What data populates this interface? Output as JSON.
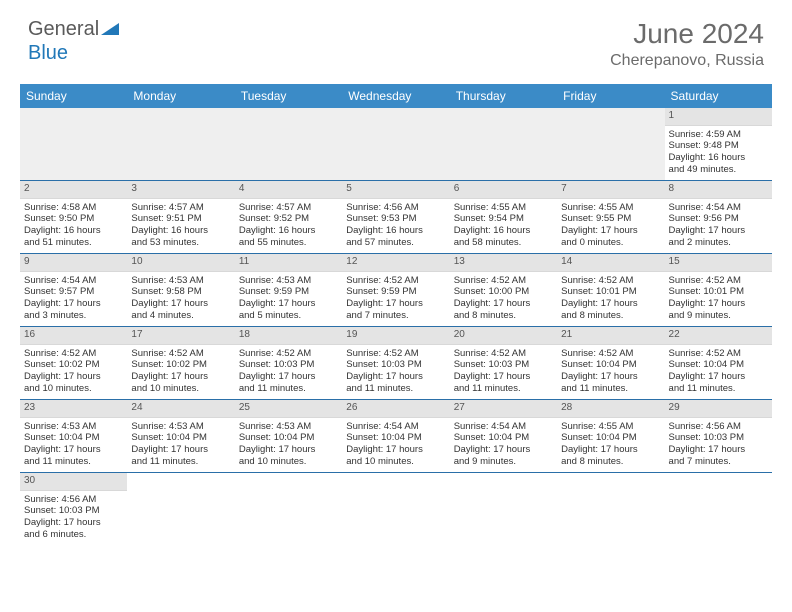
{
  "logo": {
    "text1": "General",
    "text2": "Blue"
  },
  "title": "June 2024",
  "location": "Cherepanovo, Russia",
  "colors": {
    "header_bg": "#3b8bc7",
    "header_text": "#ffffff",
    "cell_header_bg": "#e4e4e4",
    "week_border": "#2a6fa8",
    "title_color": "#6b6b6b",
    "logo_gray": "#5a5a5a",
    "logo_blue": "#2178b8"
  },
  "day_names": [
    "Sunday",
    "Monday",
    "Tuesday",
    "Wednesday",
    "Thursday",
    "Friday",
    "Saturday"
  ],
  "weeks": [
    [
      null,
      null,
      null,
      null,
      null,
      null,
      {
        "n": "1",
        "sr": "Sunrise: 4:59 AM",
        "ss": "Sunset: 9:48 PM",
        "dl1": "Daylight: 16 hours",
        "dl2": "and 49 minutes."
      }
    ],
    [
      {
        "n": "2",
        "sr": "Sunrise: 4:58 AM",
        "ss": "Sunset: 9:50 PM",
        "dl1": "Daylight: 16 hours",
        "dl2": "and 51 minutes."
      },
      {
        "n": "3",
        "sr": "Sunrise: 4:57 AM",
        "ss": "Sunset: 9:51 PM",
        "dl1": "Daylight: 16 hours",
        "dl2": "and 53 minutes."
      },
      {
        "n": "4",
        "sr": "Sunrise: 4:57 AM",
        "ss": "Sunset: 9:52 PM",
        "dl1": "Daylight: 16 hours",
        "dl2": "and 55 minutes."
      },
      {
        "n": "5",
        "sr": "Sunrise: 4:56 AM",
        "ss": "Sunset: 9:53 PM",
        "dl1": "Daylight: 16 hours",
        "dl2": "and 57 minutes."
      },
      {
        "n": "6",
        "sr": "Sunrise: 4:55 AM",
        "ss": "Sunset: 9:54 PM",
        "dl1": "Daylight: 16 hours",
        "dl2": "and 58 minutes."
      },
      {
        "n": "7",
        "sr": "Sunrise: 4:55 AM",
        "ss": "Sunset: 9:55 PM",
        "dl1": "Daylight: 17 hours",
        "dl2": "and 0 minutes."
      },
      {
        "n": "8",
        "sr": "Sunrise: 4:54 AM",
        "ss": "Sunset: 9:56 PM",
        "dl1": "Daylight: 17 hours",
        "dl2": "and 2 minutes."
      }
    ],
    [
      {
        "n": "9",
        "sr": "Sunrise: 4:54 AM",
        "ss": "Sunset: 9:57 PM",
        "dl1": "Daylight: 17 hours",
        "dl2": "and 3 minutes."
      },
      {
        "n": "10",
        "sr": "Sunrise: 4:53 AM",
        "ss": "Sunset: 9:58 PM",
        "dl1": "Daylight: 17 hours",
        "dl2": "and 4 minutes."
      },
      {
        "n": "11",
        "sr": "Sunrise: 4:53 AM",
        "ss": "Sunset: 9:59 PM",
        "dl1": "Daylight: 17 hours",
        "dl2": "and 5 minutes."
      },
      {
        "n": "12",
        "sr": "Sunrise: 4:52 AM",
        "ss": "Sunset: 9:59 PM",
        "dl1": "Daylight: 17 hours",
        "dl2": "and 7 minutes."
      },
      {
        "n": "13",
        "sr": "Sunrise: 4:52 AM",
        "ss": "Sunset: 10:00 PM",
        "dl1": "Daylight: 17 hours",
        "dl2": "and 8 minutes."
      },
      {
        "n": "14",
        "sr": "Sunrise: 4:52 AM",
        "ss": "Sunset: 10:01 PM",
        "dl1": "Daylight: 17 hours",
        "dl2": "and 8 minutes."
      },
      {
        "n": "15",
        "sr": "Sunrise: 4:52 AM",
        "ss": "Sunset: 10:01 PM",
        "dl1": "Daylight: 17 hours",
        "dl2": "and 9 minutes."
      }
    ],
    [
      {
        "n": "16",
        "sr": "Sunrise: 4:52 AM",
        "ss": "Sunset: 10:02 PM",
        "dl1": "Daylight: 17 hours",
        "dl2": "and 10 minutes."
      },
      {
        "n": "17",
        "sr": "Sunrise: 4:52 AM",
        "ss": "Sunset: 10:02 PM",
        "dl1": "Daylight: 17 hours",
        "dl2": "and 10 minutes."
      },
      {
        "n": "18",
        "sr": "Sunrise: 4:52 AM",
        "ss": "Sunset: 10:03 PM",
        "dl1": "Daylight: 17 hours",
        "dl2": "and 11 minutes."
      },
      {
        "n": "19",
        "sr": "Sunrise: 4:52 AM",
        "ss": "Sunset: 10:03 PM",
        "dl1": "Daylight: 17 hours",
        "dl2": "and 11 minutes."
      },
      {
        "n": "20",
        "sr": "Sunrise: 4:52 AM",
        "ss": "Sunset: 10:03 PM",
        "dl1": "Daylight: 17 hours",
        "dl2": "and 11 minutes."
      },
      {
        "n": "21",
        "sr": "Sunrise: 4:52 AM",
        "ss": "Sunset: 10:04 PM",
        "dl1": "Daylight: 17 hours",
        "dl2": "and 11 minutes."
      },
      {
        "n": "22",
        "sr": "Sunrise: 4:52 AM",
        "ss": "Sunset: 10:04 PM",
        "dl1": "Daylight: 17 hours",
        "dl2": "and 11 minutes."
      }
    ],
    [
      {
        "n": "23",
        "sr": "Sunrise: 4:53 AM",
        "ss": "Sunset: 10:04 PM",
        "dl1": "Daylight: 17 hours",
        "dl2": "and 11 minutes."
      },
      {
        "n": "24",
        "sr": "Sunrise: 4:53 AM",
        "ss": "Sunset: 10:04 PM",
        "dl1": "Daylight: 17 hours",
        "dl2": "and 11 minutes."
      },
      {
        "n": "25",
        "sr": "Sunrise: 4:53 AM",
        "ss": "Sunset: 10:04 PM",
        "dl1": "Daylight: 17 hours",
        "dl2": "and 10 minutes."
      },
      {
        "n": "26",
        "sr": "Sunrise: 4:54 AM",
        "ss": "Sunset: 10:04 PM",
        "dl1": "Daylight: 17 hours",
        "dl2": "and 10 minutes."
      },
      {
        "n": "27",
        "sr": "Sunrise: 4:54 AM",
        "ss": "Sunset: 10:04 PM",
        "dl1": "Daylight: 17 hours",
        "dl2": "and 9 minutes."
      },
      {
        "n": "28",
        "sr": "Sunrise: 4:55 AM",
        "ss": "Sunset: 10:04 PM",
        "dl1": "Daylight: 17 hours",
        "dl2": "and 8 minutes."
      },
      {
        "n": "29",
        "sr": "Sunrise: 4:56 AM",
        "ss": "Sunset: 10:03 PM",
        "dl1": "Daylight: 17 hours",
        "dl2": "and 7 minutes."
      }
    ],
    [
      {
        "n": "30",
        "sr": "Sunrise: 4:56 AM",
        "ss": "Sunset: 10:03 PM",
        "dl1": "Daylight: 17 hours",
        "dl2": "and 6 minutes."
      },
      null,
      null,
      null,
      null,
      null,
      null
    ]
  ]
}
